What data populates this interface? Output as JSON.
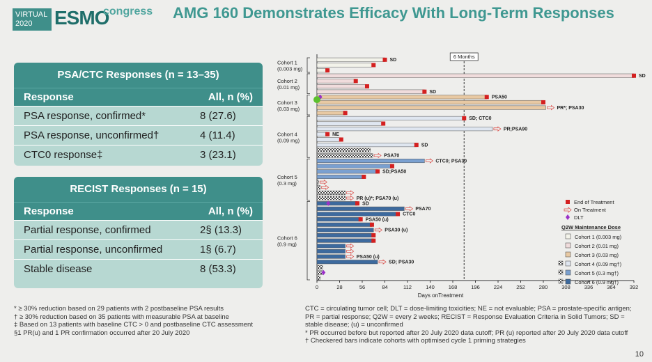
{
  "logo": {
    "virtual": "VIRTUAL",
    "year": "2020",
    "esmo": "ESMO",
    "congress": "congress"
  },
  "title": "AMG 160 Demonstrates Efficacy With Long-Term Responses",
  "psa_table": {
    "title": "PSA/CTC Responses (n = 13–35)",
    "col_response": "Response",
    "col_all": "All, n (%)",
    "rows": [
      {
        "label": "PSA response, confirmed*",
        "value": "8 (27.6)"
      },
      {
        "label": "PSA response, unconfirmed†",
        "value": "4 (11.4)"
      },
      {
        "label": "CTC0 response‡",
        "value": "3 (23.1)"
      }
    ]
  },
  "recist_table": {
    "title": "RECIST Responses (n = 15)",
    "col_response": "Response",
    "col_all": "All, n (%)",
    "rows": [
      {
        "label": "Partial response, confirmed",
        "value": "2§ (13.3)"
      },
      {
        "label": "Partial response, unconfirmed",
        "value": "1§ (6.7)"
      },
      {
        "label": "Stable disease",
        "value": "8 (53.3)"
      }
    ]
  },
  "footnotes_left": [
    "* ≥ 30% reduction based on 29 patients with 2 postbaseline PSA results",
    "† ≥ 30% reduction based on 35 patients with measurable PSA at baseline",
    "‡ Based on 13 patients with baseline CTC > 0 and postbaseline CTC assessment",
    "§1 PR(u) and 1 PR confirmation occurred after 20 July 2020"
  ],
  "footnotes_right": [
    "CTC = circulating tumor cell; DLT = dose-limiting toxicities; NE = not evaluable; PSA = prostate-specific antigen; PR = partial response; Q2W = every 2 weeks; RECIST = Response Evaluation Criteria in Solid Tumors; SD = stable disease; (u) = unconfirmed",
    "* PR occurred before but reported after 20 July 2020 data cutoff; PR (u) reported after 20 July 2020 data cutoff",
    "† Checkered bars indicate cohorts with optimised cycle 1 priming strategies"
  ],
  "page_number": "10",
  "chart_data": {
    "type": "swimmer",
    "xlabel": "Days onTreatment",
    "xticks": [
      0,
      28,
      56,
      84,
      112,
      140,
      168,
      196,
      224,
      252,
      280,
      308,
      336,
      364,
      392
    ],
    "xlim": [
      0,
      392
    ],
    "six_months_label": "6 Months",
    "six_months_day": 182,
    "cohort_labels": [
      {
        "name": "Cohort 1",
        "dose": "(0.003 mg)"
      },
      {
        "name": "Cohort 2",
        "dose": "(0.01 mg)"
      },
      {
        "name": "Cohort 3",
        "dose": "(0.03 mg)"
      },
      {
        "name": "Cohort 4",
        "dose": "(0.09 mg)"
      },
      {
        "name": "Cohort 5",
        "dose": "(0.3 mg)"
      },
      {
        "name": "Cohort 6",
        "dose": "(0.9 mg)"
      }
    ],
    "legend": {
      "end_of_treatment": "End of Treatment",
      "on_treatment": "On Treatment",
      "dlt": "DLT",
      "maintenance_title": "Q2W Maintenance Dose",
      "cohorts": [
        "Cohort 1 (0.003 mg)",
        "Cohort 2 (0.01 mg)",
        "Cohort 3 (0.03 mg)",
        "Cohort 4 (0.09 mg†)",
        "Cohort 5 (0.3 mg†)",
        "Cohort 6 (0.9 mg†)"
      ]
    },
    "colors": {
      "c1": "#f3f3ea",
      "c2": "#f0dcdc",
      "c3": "#e8c9a3",
      "c4": "#dfe6f0",
      "c5": "#7aa0d0",
      "c6": "#3d6a9e",
      "eot": "#d42020",
      "arrow": "#d9534f",
      "dlt": "#9b30c8"
    },
    "bars": [
      {
        "c": 1,
        "d": 84,
        "eot": true,
        "label": "SD"
      },
      {
        "c": 1,
        "d": 70,
        "eot": true,
        "label": ""
      },
      {
        "c": 1,
        "d": 13,
        "eot": true,
        "label": ""
      },
      {
        "c": 2,
        "d": 392,
        "eot": true,
        "label": "SD"
      },
      {
        "c": 2,
        "d": 48,
        "eot": true,
        "label": ""
      },
      {
        "c": 2,
        "d": 62,
        "eot": true,
        "label": ""
      },
      {
        "c": 2,
        "d": 133,
        "eot": true,
        "label": "SD"
      },
      {
        "c": 3,
        "d": 210,
        "eot": true,
        "label": "PSA50",
        "dlt": 4
      },
      {
        "c": 3,
        "d": 280,
        "eot": true,
        "label": ""
      },
      {
        "c": 3,
        "d": 283,
        "arrow": true,
        "label": "PR*; PSA30"
      },
      {
        "c": 3,
        "d": 35,
        "eot": true,
        "label": ""
      },
      {
        "c": 4,
        "d": 182,
        "eot": true,
        "label": "SD; CTC0"
      },
      {
        "c": 4,
        "d": 82,
        "eot": true,
        "label": ""
      },
      {
        "c": 4,
        "d": 217,
        "arrow": true,
        "label": "PR;PSA90"
      },
      {
        "c": 4,
        "d": 13,
        "eot": true,
        "label": "NE"
      },
      {
        "c": 4,
        "d": 30,
        "eot": true,
        "label": ""
      },
      {
        "c": 4,
        "d": 123,
        "eot": true,
        "label": "SD"
      },
      {
        "c": 4,
        "d": 66,
        "arrow": false,
        "label": "",
        "hatch": true
      },
      {
        "c": 4,
        "d": 69,
        "arrow": true,
        "label": "PSA70",
        "hatch": true
      },
      {
        "c": 5,
        "d": 133,
        "arrow": true,
        "label": "CTC0; PSA30"
      },
      {
        "c": 5,
        "d": 93,
        "eot": true,
        "label": ""
      },
      {
        "c": 5,
        "d": 75,
        "eot": true,
        "label": "SD;PSA50"
      },
      {
        "c": 5,
        "d": 58,
        "eot": true,
        "label": ""
      },
      {
        "c": 5,
        "d": 2,
        "arrow": true,
        "label": "",
        "hatch": true
      },
      {
        "c": 5,
        "d": 4,
        "arrow": true,
        "label": "",
        "hatch": true
      },
      {
        "c": 5,
        "d": 35,
        "arrow": true,
        "label": "",
        "hatch": true
      },
      {
        "c": 5,
        "d": 35,
        "arrow": true,
        "label": "PR (u)*; PSA70 (u)",
        "hatch": true
      },
      {
        "c": 6,
        "d": 50,
        "eot": true,
        "label": "SD",
        "dlt": 14
      },
      {
        "c": 6,
        "d": 108,
        "arrow": true,
        "label": "PSA70"
      },
      {
        "c": 6,
        "d": 100,
        "eot": true,
        "label": "CTC0"
      },
      {
        "c": 6,
        "d": 54,
        "eot": true,
        "label": "PSA50 (u)"
      },
      {
        "c": 6,
        "d": 68,
        "eot": true,
        "label": ""
      },
      {
        "c": 6,
        "d": 70,
        "arrow": true,
        "label": "PSA30 (u)"
      },
      {
        "c": 6,
        "d": 70,
        "eot": true,
        "label": ""
      },
      {
        "c": 6,
        "d": 70,
        "eot": true,
        "label": ""
      },
      {
        "c": 6,
        "d": 35,
        "arrow": true,
        "label": ""
      },
      {
        "c": 6,
        "d": 35,
        "arrow": true,
        "label": ""
      },
      {
        "c": 6,
        "d": 35,
        "arrow": true,
        "label": "PSA50 (u)"
      },
      {
        "c": 6,
        "d": 75,
        "arrow": true,
        "label": "SD; PSA30"
      },
      {
        "c": 6,
        "d": 7,
        "arrow": false,
        "label": "",
        "hatch": true
      },
      {
        "c": 6,
        "d": 8,
        "arrow": false,
        "label": "",
        "hatch": true,
        "dlt": 8
      },
      {
        "c": 6,
        "d": 4,
        "arrow": false,
        "label": "",
        "hatch": true
      }
    ]
  }
}
